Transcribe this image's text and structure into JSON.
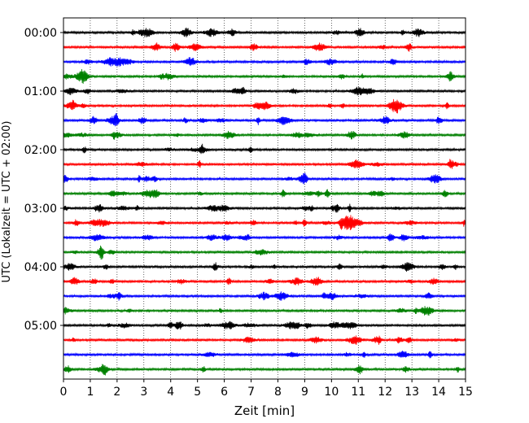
{
  "chart_data": {
    "type": "line",
    "title": "",
    "xlabel": "Zeit  [min]",
    "ylabel": "UTC (Lokalzeit = UTC + 02:00)",
    "xlim": [
      0,
      15
    ],
    "x_ticks": [
      "0",
      "1",
      "2",
      "3",
      "4",
      "5",
      "6",
      "7",
      "8",
      "9",
      "10",
      "11",
      "12",
      "13",
      "14",
      "15"
    ],
    "y_tick_labels": [
      "00:00",
      "01:00",
      "02:00",
      "03:00",
      "04:00",
      "05:00"
    ],
    "grid": "vertical-dotted",
    "trace_minutes": 15,
    "trace_colors": [
      "#000000",
      "#ff0000",
      "#0000ff",
      "#008000"
    ],
    "traces": [
      {
        "start": "00:00",
        "color": "#000000"
      },
      {
        "start": "00:15",
        "color": "#ff0000"
      },
      {
        "start": "00:30",
        "color": "#0000ff"
      },
      {
        "start": "00:45",
        "color": "#008000"
      },
      {
        "start": "01:00",
        "color": "#000000"
      },
      {
        "start": "01:15",
        "color": "#ff0000"
      },
      {
        "start": "01:30",
        "color": "#0000ff"
      },
      {
        "start": "01:45",
        "color": "#008000"
      },
      {
        "start": "02:00",
        "color": "#000000"
      },
      {
        "start": "02:15",
        "color": "#ff0000"
      },
      {
        "start": "02:30",
        "color": "#0000ff"
      },
      {
        "start": "02:45",
        "color": "#008000"
      },
      {
        "start": "03:00",
        "color": "#000000"
      },
      {
        "start": "03:15",
        "color": "#ff0000"
      },
      {
        "start": "03:30",
        "color": "#0000ff"
      },
      {
        "start": "03:45",
        "color": "#008000"
      },
      {
        "start": "04:00",
        "color": "#000000"
      },
      {
        "start": "04:15",
        "color": "#ff0000"
      },
      {
        "start": "04:30",
        "color": "#0000ff"
      },
      {
        "start": "04:45",
        "color": "#008000"
      },
      {
        "start": "05:00",
        "color": "#000000"
      },
      {
        "start": "05:15",
        "color": "#ff0000"
      },
      {
        "start": "05:30",
        "color": "#0000ff"
      },
      {
        "start": "05:45",
        "color": "#008000"
      }
    ],
    "annotations": [
      {
        "trace": "03:15",
        "x_min": 10.6,
        "description": "large seismic event"
      }
    ]
  }
}
